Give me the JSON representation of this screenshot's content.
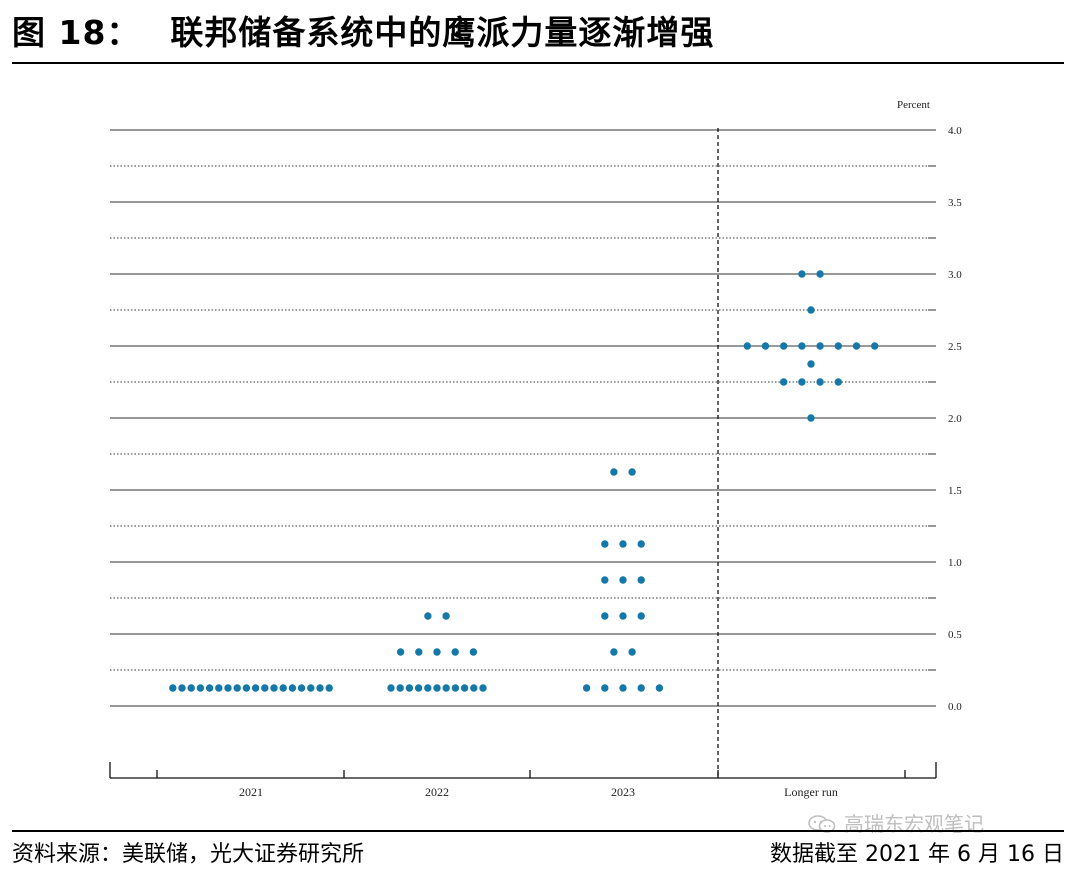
{
  "header": {
    "figure_label": "图 18：",
    "title": "联邦储备系统中的鹰派力量逐渐增强"
  },
  "footer": {
    "source": "资料来源：美联储，光大证券研究所",
    "as_of": "数据截至 2021 年 6 月 16 日",
    "watermark": "高瑞东宏观笔记"
  },
  "colors": {
    "dot": "#1479a8",
    "grid": "#333333",
    "rule": "#000000"
  },
  "chart_data": {
    "type": "scatter",
    "title": "",
    "ylabel": "Percent",
    "ylim": [
      -0.5,
      4.0
    ],
    "y_ticks": [
      "4.0",
      "3.5",
      "3.0",
      "2.5",
      "2.0",
      "1.5",
      "1.0",
      "0.5",
      "0.0"
    ],
    "grid": true,
    "categories": [
      "2021",
      "2022",
      "2023",
      "Longer run"
    ],
    "dots": [
      {
        "category": "2021",
        "rate": 0.125,
        "count": 18
      },
      {
        "category": "2022",
        "rate": 0.125,
        "count": 11
      },
      {
        "category": "2022",
        "rate": 0.375,
        "count": 5
      },
      {
        "category": "2022",
        "rate": 0.625,
        "count": 2
      },
      {
        "category": "2023",
        "rate": 0.125,
        "count": 5
      },
      {
        "category": "2023",
        "rate": 0.375,
        "count": 2
      },
      {
        "category": "2023",
        "rate": 0.625,
        "count": 3
      },
      {
        "category": "2023",
        "rate": 0.875,
        "count": 3
      },
      {
        "category": "2023",
        "rate": 1.125,
        "count": 3
      },
      {
        "category": "2023",
        "rate": 1.625,
        "count": 2
      },
      {
        "category": "Longer run",
        "rate": 2.0,
        "count": 1
      },
      {
        "category": "Longer run",
        "rate": 2.25,
        "count": 4
      },
      {
        "category": "Longer run",
        "rate": 2.375,
        "count": 1
      },
      {
        "category": "Longer run",
        "rate": 2.5,
        "count": 8
      },
      {
        "category": "Longer run",
        "rate": 2.75,
        "count": 1
      },
      {
        "category": "Longer run",
        "rate": 3.0,
        "count": 2
      }
    ]
  }
}
